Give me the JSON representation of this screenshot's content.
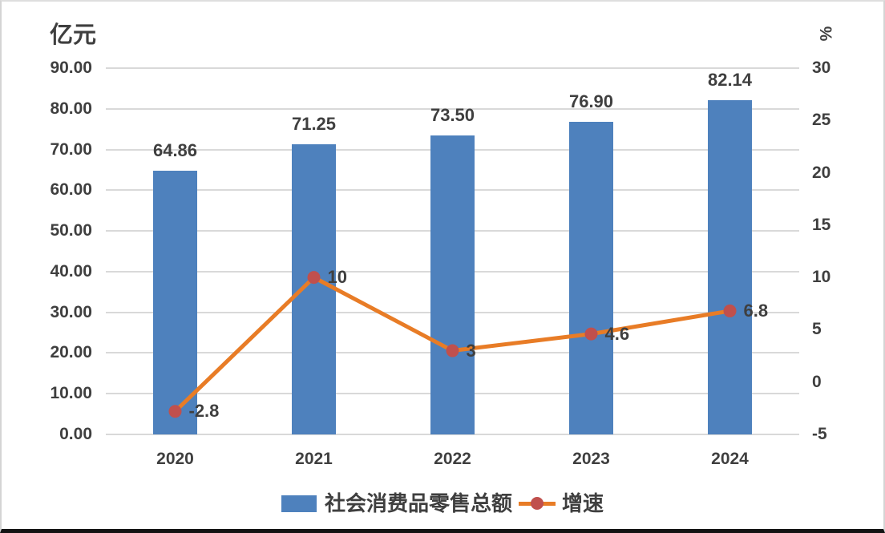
{
  "chart_data": {
    "type": "combo",
    "categories": [
      "2020",
      "2021",
      "2022",
      "2023",
      "2024"
    ],
    "series": [
      {
        "name": "社会消费品零售总额",
        "type": "bar",
        "axis": "left",
        "values": [
          64.86,
          71.25,
          73.5,
          76.9,
          82.14
        ],
        "labels": [
          "64.86",
          "71.25",
          "73.50",
          "76.90",
          "82.14"
        ],
        "color": "#4e81bd"
      },
      {
        "name": "增速",
        "type": "line",
        "axis": "right",
        "values": [
          -2.8,
          10,
          3,
          4.6,
          6.8
        ],
        "labels": [
          "-2.8",
          "10",
          "3",
          "4.6",
          "6.8"
        ],
        "color": "#e87c26",
        "marker_color": "#c0504d"
      }
    ],
    "left_axis": {
      "title": "亿元",
      "min": 0,
      "max": 90,
      "step": 10,
      "ticks": [
        "0.00",
        "10.00",
        "20.00",
        "30.00",
        "40.00",
        "50.00",
        "60.00",
        "70.00",
        "80.00",
        "90.00"
      ]
    },
    "right_axis": {
      "title": "%",
      "min": -5,
      "max": 30,
      "step": 5,
      "ticks": [
        "-5",
        "0",
        "5",
        "10",
        "15",
        "20",
        "25",
        "30"
      ]
    },
    "grid": true,
    "legend_position": "bottom",
    "colors": {
      "text": "#3f3f3f",
      "gridline": "#d9d9d9",
      "background": "#ffffff"
    }
  }
}
